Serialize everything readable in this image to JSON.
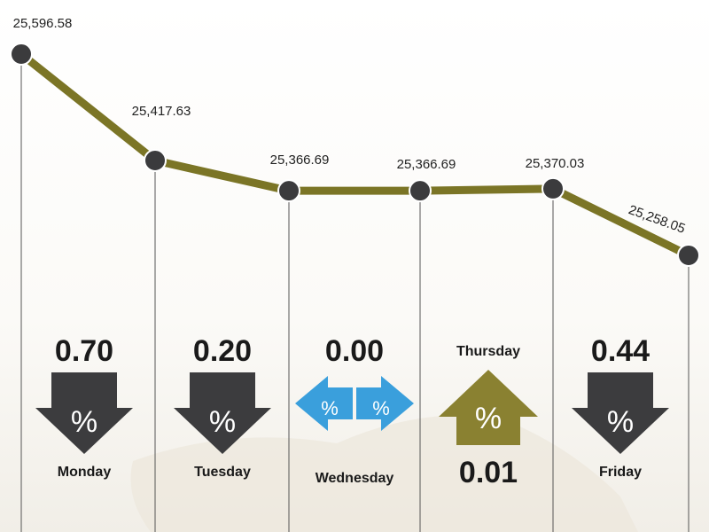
{
  "chart_data": {
    "type": "line",
    "categories": [
      null,
      "Monday",
      "Tuesday",
      "Wednesday",
      "Thursday",
      "Friday"
    ],
    "values": [
      25596.58,
      25417.63,
      25366.69,
      25366.69,
      25370.03,
      25258.05
    ],
    "value_labels": [
      "25,596.58",
      "25,417.63",
      "25,366.69",
      "25,366.69",
      "25,370.03",
      "25,258.05"
    ],
    "color": "#7b7526",
    "marker_color": "#3b3b3d",
    "changes": {
      "values": [
        0.7,
        0.2,
        0,
        0.01,
        0.44
      ],
      "value_labels": [
        "0.70",
        "0.20",
        "0.00",
        "0.01",
        "0.44"
      ],
      "directions": [
        "down",
        "down",
        "flat",
        "up",
        "down"
      ],
      "symbol": "%",
      "colors": {
        "down": "#3c3c3e",
        "flat": "#3a9fdc",
        "up": "#8a8131"
      }
    }
  }
}
